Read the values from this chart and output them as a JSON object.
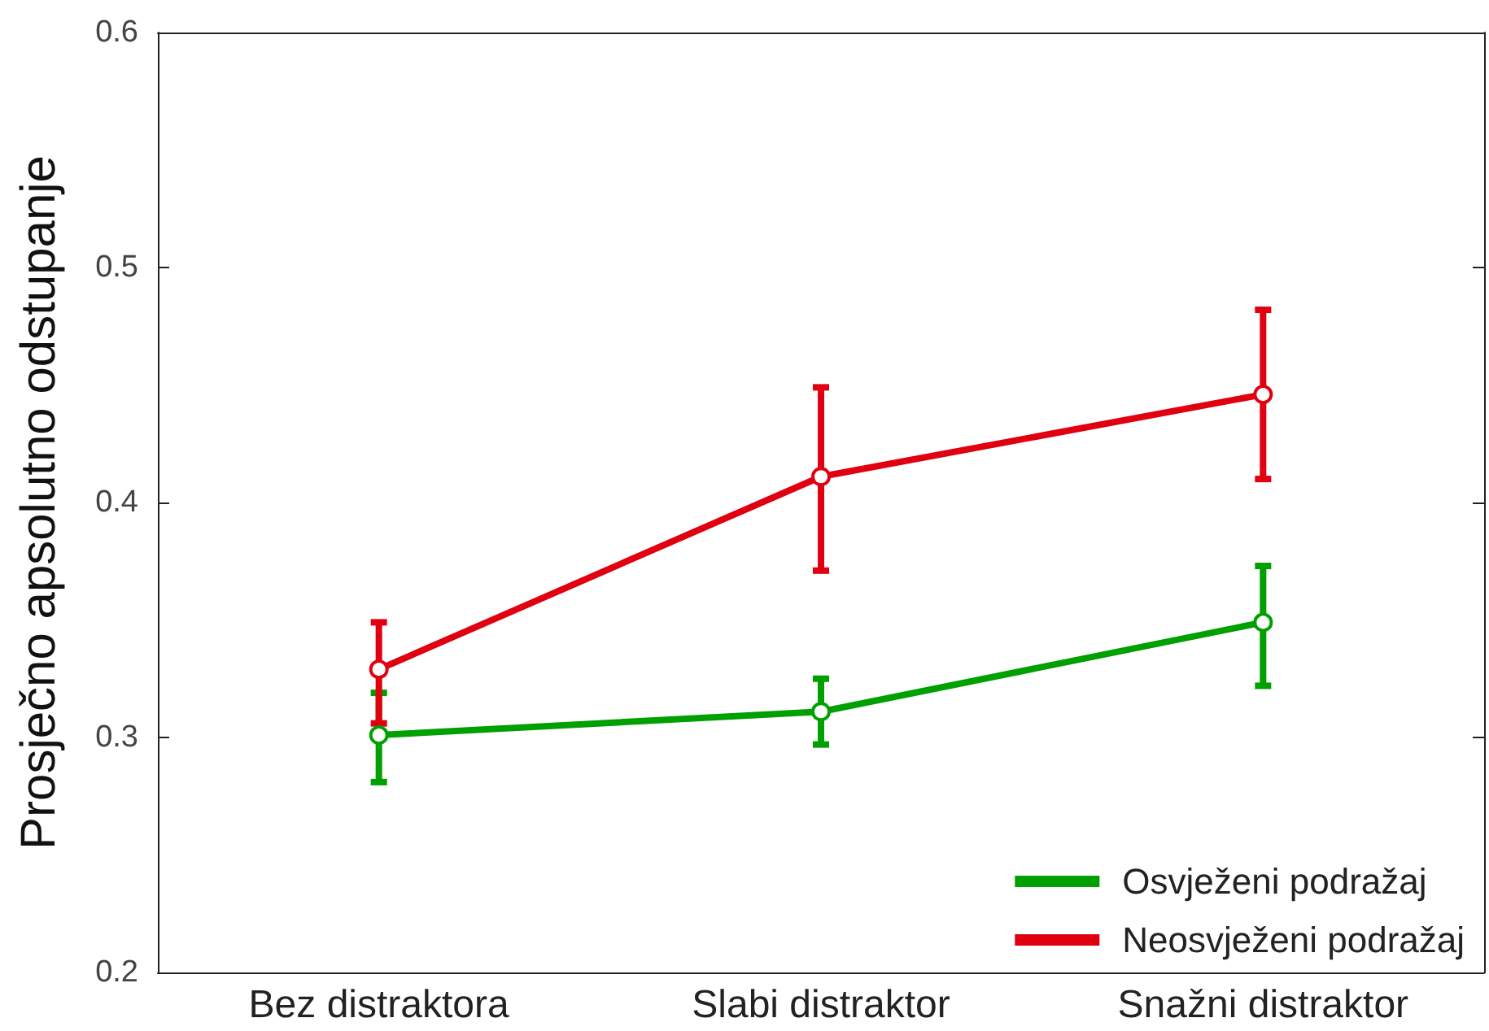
{
  "chart_data": {
    "type": "line",
    "ylabel": "Prosječno apsolutno odstupanje",
    "categories": [
      "Bez distraktora",
      "Slabi distraktor",
      "Snažni distraktor"
    ],
    "series": [
      {
        "name": "Osvježeni podražaj",
        "color": "#00a000",
        "values": [
          0.301,
          0.311,
          0.349
        ],
        "errors": [
          [
            0.281,
            0.319
          ],
          [
            0.297,
            0.325
          ],
          [
            0.322,
            0.373
          ]
        ]
      },
      {
        "name": "Neosvježeni podražaj",
        "color": "#e00010",
        "values": [
          0.329,
          0.411,
          0.446
        ],
        "errors": [
          [
            0.306,
            0.349
          ],
          [
            0.371,
            0.449
          ],
          [
            0.41,
            0.482
          ]
        ]
      }
    ],
    "ylim": [
      0.2,
      0.6
    ],
    "yticks": [
      0.2,
      0.3,
      0.4,
      0.5,
      0.6
    ],
    "grid": false,
    "legend": "bottom right",
    "marker": "circle",
    "line_style": "solid"
  }
}
